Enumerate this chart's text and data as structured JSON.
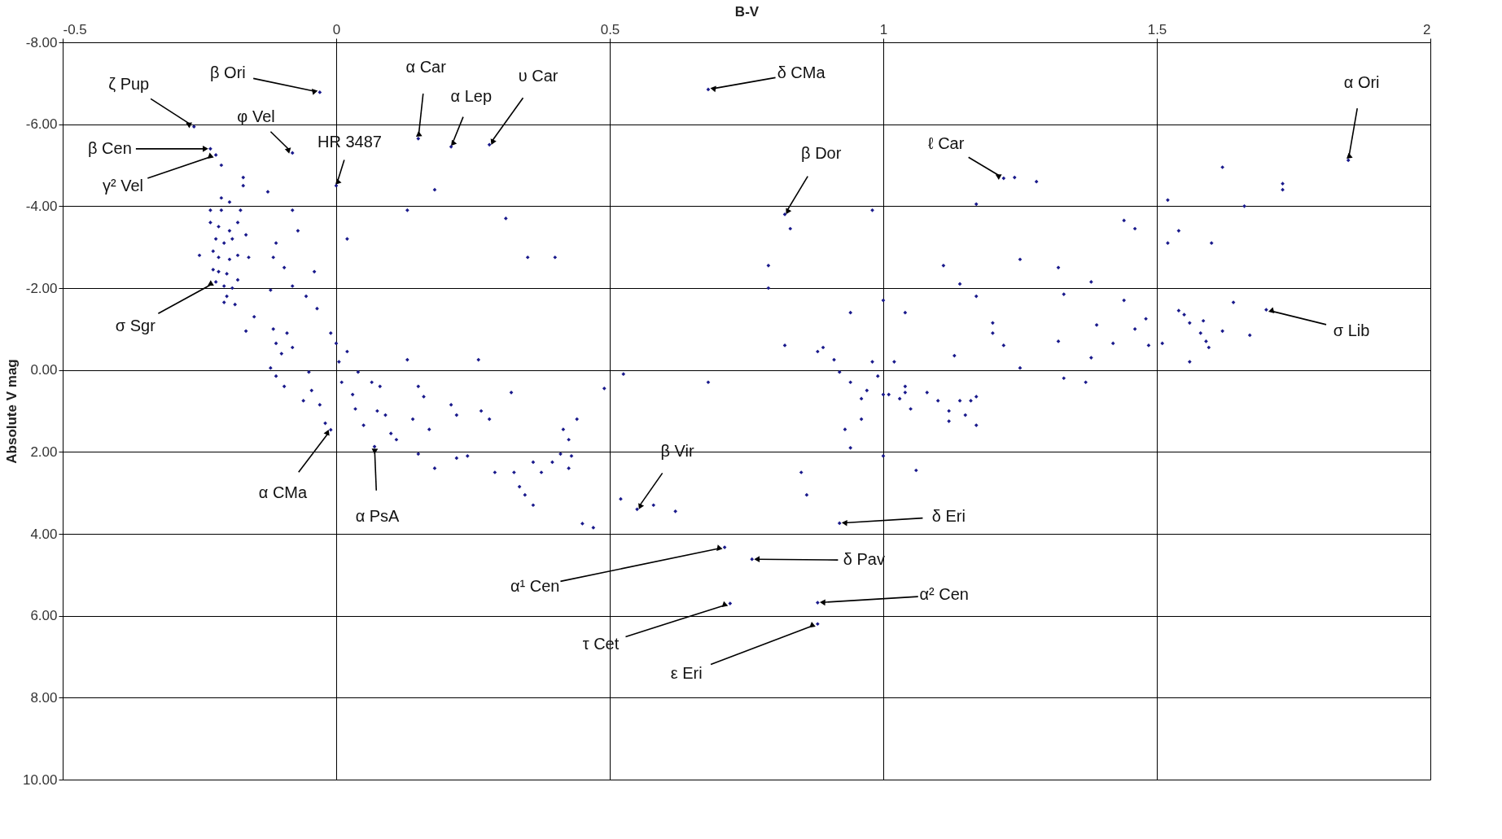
{
  "chart_data": {
    "type": "scatter",
    "xlabel": "B-V",
    "ylabel": "Absolute V mag",
    "xlim": [
      -0.5,
      2
    ],
    "xticks": [
      -0.5,
      0,
      0.5,
      1,
      1.5,
      2
    ],
    "ylim": [
      10,
      -8
    ],
    "yticks": [
      {
        "value": -8,
        "label": "-8.00"
      },
      {
        "value": -6,
        "label": "-6.00"
      },
      {
        "value": -4,
        "label": "-4.00"
      },
      {
        "value": -2,
        "label": "-2.00"
      },
      {
        "value": 0,
        "label": "0.00"
      },
      {
        "value": 2,
        "label": "2.00"
      },
      {
        "value": 4,
        "label": "4.00"
      },
      {
        "value": 6,
        "label": "6.00"
      },
      {
        "value": 8,
        "label": "8.00"
      },
      {
        "value": 10,
        "label": "10.00"
      }
    ],
    "grid": true,
    "marker": "diamond",
    "series": [
      {
        "color": "#1a1a8c",
        "x": [
          -0.26,
          -0.03,
          -0.23,
          -0.22,
          -0.21,
          -0.08,
          0.0,
          0.15,
          0.21,
          0.28,
          0.68,
          1.85,
          1.22,
          0.82,
          1.7,
          -0.01,
          0.07,
          0.55,
          0.92,
          0.71,
          0.76,
          0.88,
          0.72,
          0.88,
          -0.17,
          -0.17,
          -0.21,
          -0.195,
          -0.23,
          -0.21,
          -0.175,
          -0.23,
          -0.215,
          -0.195,
          -0.18,
          -0.22,
          -0.205,
          -0.19,
          -0.165,
          -0.25,
          -0.225,
          -0.215,
          -0.195,
          -0.18,
          -0.16,
          -0.225,
          -0.215,
          -0.2,
          -0.22,
          -0.205,
          -0.19,
          -0.18,
          -0.2,
          -0.185,
          -0.205,
          -0.165,
          -0.15,
          -0.125,
          -0.11,
          -0.115,
          -0.095,
          -0.12,
          -0.08,
          -0.07,
          -0.04,
          -0.035,
          -0.08,
          -0.055,
          -0.115,
          -0.11,
          -0.1,
          -0.12,
          -0.11,
          -0.095,
          -0.09,
          -0.08,
          -0.05,
          -0.045,
          -0.06,
          -0.03,
          -0.02,
          -0.01,
          0.0,
          0.005,
          0.01,
          0.02,
          0.03,
          0.035,
          0.05,
          0.04,
          0.065,
          0.075,
          0.09,
          0.08,
          0.1,
          0.11,
          0.02,
          0.13,
          0.15,
          0.14,
          0.16,
          0.17,
          0.15,
          0.18,
          0.13,
          0.18,
          0.21,
          0.22,
          0.22,
          0.24,
          0.26,
          0.265,
          0.28,
          0.29,
          0.31,
          0.32,
          0.325,
          0.335,
          0.345,
          0.35,
          0.36,
          0.36,
          0.375,
          0.4,
          0.395,
          0.41,
          0.415,
          0.425,
          0.425,
          0.43,
          0.44,
          0.45,
          0.47,
          0.49,
          0.525,
          0.52,
          0.58,
          0.62,
          0.68,
          0.79,
          0.79,
          0.82,
          0.83,
          0.88,
          0.89,
          0.94,
          0.98,
          1.0,
          1.04,
          0.85,
          0.86,
          0.94,
          1.0,
          1.06,
          1.04,
          0.91,
          0.92,
          0.94,
          0.96,
          0.97,
          0.98,
          0.99,
          1.0,
          1.01,
          1.03,
          1.02,
          1.04,
          1.05,
          0.96,
          0.93,
          1.08,
          1.1,
          1.12,
          1.12,
          1.14,
          1.15,
          1.16,
          1.17,
          1.17,
          1.13,
          1.11,
          1.14,
          1.17,
          1.17,
          1.2,
          1.2,
          1.22,
          1.25,
          1.24,
          1.28,
          1.25,
          1.32,
          1.33,
          1.32,
          1.33,
          1.37,
          1.38,
          1.39,
          1.38,
          1.42,
          1.44,
          1.46,
          1.44,
          1.46,
          1.48,
          1.485,
          1.51,
          1.52,
          1.52,
          1.54,
          1.54,
          1.55,
          1.56,
          1.56,
          1.58,
          1.59,
          1.595,
          1.6,
          1.62,
          1.62,
          1.64,
          1.66,
          1.73,
          1.73,
          1.67,
          1.585
        ],
        "values": [
          -5.94,
          -6.78,
          -5.4,
          -5.25,
          -5.0,
          -5.3,
          -4.5,
          -5.65,
          -5.45,
          -5.5,
          -6.85,
          -5.12,
          -4.68,
          -3.8,
          -1.47,
          1.46,
          1.87,
          3.4,
          3.74,
          4.33,
          4.62,
          5.68,
          5.7,
          6.2,
          -4.7,
          -4.5,
          -4.2,
          -4.1,
          -3.9,
          -3.9,
          -3.9,
          -3.6,
          -3.5,
          -3.4,
          -3.6,
          -3.2,
          -3.1,
          -3.2,
          -3.3,
          -2.8,
          -2.9,
          -2.75,
          -2.7,
          -2.8,
          -2.75,
          -2.45,
          -2.4,
          -2.35,
          -2.15,
          -2.05,
          -2.0,
          -2.2,
          -1.8,
          -1.6,
          -1.65,
          -0.95,
          -1.3,
          -4.35,
          -3.1,
          -2.75,
          -2.5,
          -1.95,
          -3.9,
          -3.4,
          -2.4,
          -1.5,
          -2.05,
          -1.8,
          -1.0,
          -0.65,
          -0.4,
          -0.05,
          0.15,
          0.4,
          -0.9,
          -0.55,
          0.05,
          0.5,
          0.75,
          0.85,
          1.3,
          -0.9,
          -0.65,
          -0.2,
          0.3,
          -0.45,
          0.6,
          0.95,
          1.35,
          0.05,
          0.3,
          1.0,
          1.1,
          0.4,
          1.55,
          1.7,
          -3.2,
          -0.25,
          0.4,
          1.2,
          0.65,
          1.45,
          2.05,
          2.4,
          -3.9,
          -4.4,
          0.85,
          1.1,
          2.15,
          2.1,
          -0.25,
          1.0,
          1.2,
          2.5,
          -3.7,
          0.55,
          2.5,
          2.85,
          3.05,
          -2.75,
          2.25,
          3.3,
          2.5,
          -2.75,
          2.25,
          2.05,
          1.45,
          2.4,
          1.7,
          2.1,
          1.2,
          3.75,
          3.85,
          0.45,
          0.1,
          3.15,
          3.3,
          3.45,
          0.3,
          -2.55,
          -2.0,
          -0.6,
          -3.45,
          -0.45,
          -0.55,
          -1.4,
          -3.9,
          -1.7,
          -1.4,
          2.5,
          3.05,
          1.9,
          2.1,
          2.45,
          0.4,
          -0.25,
          0.05,
          0.3,
          0.7,
          0.5,
          -0.2,
          0.15,
          0.6,
          0.6,
          0.7,
          -0.2,
          0.55,
          0.95,
          1.2,
          1.45,
          0.55,
          0.75,
          1.0,
          1.25,
          0.75,
          1.1,
          0.75,
          0.65,
          1.35,
          -0.35,
          -2.55,
          -2.1,
          -4.05,
          -1.8,
          -0.9,
          -1.15,
          -0.6,
          -0.05,
          -4.7,
          -4.6,
          -2.7,
          -2.5,
          -1.85,
          -0.7,
          0.2,
          0.3,
          -2.15,
          -1.1,
          -0.3,
          -0.65,
          -3.65,
          -3.45,
          -1.7,
          -1.0,
          -1.25,
          -0.6,
          -0.65,
          -4.15,
          -3.1,
          -3.4,
          -1.45,
          -1.35,
          -1.15,
          -0.2,
          -0.9,
          -0.7,
          -0.55,
          -3.1,
          -4.95,
          -0.95,
          -1.65,
          -4.0,
          -4.55,
          -4.4,
          -0.85,
          -1.2
        ]
      }
    ],
    "annotations": [
      {
        "text": "ζ Pup",
        "x": -0.26,
        "y": -5.94
      },
      {
        "text": "β Ori",
        "x": -0.03,
        "y": -6.78
      },
      {
        "text": "β Cen",
        "x": -0.23,
        "y": -5.4
      },
      {
        "text": "γ² Vel",
        "x": -0.22,
        "y": -5.25
      },
      {
        "text": "φ Vel",
        "x": -0.08,
        "y": -5.3
      },
      {
        "text": "HR 3487",
        "x": 0.0,
        "y": -4.5
      },
      {
        "text": "α Car",
        "x": 0.15,
        "y": -5.65
      },
      {
        "text": "α Lep",
        "x": 0.21,
        "y": -5.45
      },
      {
        "text": "υ Car",
        "x": 0.28,
        "y": -5.5
      },
      {
        "text": "δ CMa",
        "x": 0.68,
        "y": -6.85
      },
      {
        "text": "β Dor",
        "x": 0.82,
        "y": -3.8
      },
      {
        "text": "ℓ Car",
        "x": 1.22,
        "y": -4.68
      },
      {
        "text": "α Ori",
        "x": 1.85,
        "y": -5.12
      },
      {
        "text": "σ Sgr",
        "x": -0.22,
        "y": -2.15
      },
      {
        "text": "σ Lib",
        "x": 1.7,
        "y": -1.47
      },
      {
        "text": "α CMa",
        "x": -0.01,
        "y": 1.46
      },
      {
        "text": "α PsA",
        "x": 0.07,
        "y": 1.87
      },
      {
        "text": "β Vir",
        "x": 0.55,
        "y": 3.4
      },
      {
        "text": "δ Eri",
        "x": 0.92,
        "y": 3.74
      },
      {
        "text": "α¹ Cen",
        "x": 0.71,
        "y": 4.33
      },
      {
        "text": "δ Pav",
        "x": 0.76,
        "y": 4.62
      },
      {
        "text": "α² Cen",
        "x": 0.88,
        "y": 5.68
      },
      {
        "text": "τ Cet",
        "x": 0.72,
        "y": 5.7
      },
      {
        "text": "ε Eri",
        "x": 0.88,
        "y": 6.2
      }
    ]
  }
}
